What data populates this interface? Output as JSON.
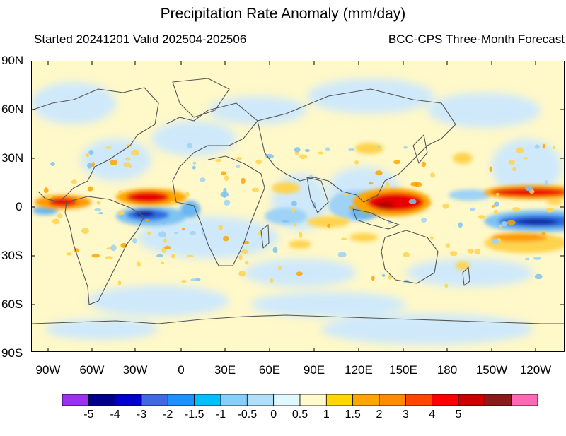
{
  "title": "Precipitation Rate Anomaly (mm/day)",
  "subtitle_left": "Started 20241201  Valid 202504-202506",
  "subtitle_right": "BCC-CPS Three-Month Forecast",
  "lat_labels": [
    "90N",
    "60N",
    "30N",
    "0",
    "30S",
    "60S",
    "90S"
  ],
  "lon_labels": [
    "90W",
    "60W",
    "30W",
    "0",
    "30E",
    "60E",
    "90E",
    "120E",
    "150E",
    "180",
    "150W",
    "120W"
  ],
  "colorbar": {
    "colors": [
      "#9b30f0",
      "#00008b",
      "#0000cd",
      "#4169e1",
      "#1e90ff",
      "#00bfff",
      "#87cefa",
      "#b0e0f8",
      "#e0f8ff",
      "#fffacd",
      "#ffd700",
      "#ffa500",
      "#ff8c00",
      "#ff4500",
      "#ff0000",
      "#cc0000",
      "#8b1a1a",
      "#ff69b4"
    ],
    "labels": [
      "-5",
      "-4",
      "-3",
      "-2",
      "-1.5",
      "-1",
      "-0.5",
      "0",
      "0.5",
      "1",
      "1.5",
      "2",
      "3",
      "4",
      "5"
    ]
  },
  "map": {
    "background_color": "#fff8c8",
    "coastline_color": "#555555"
  }
}
